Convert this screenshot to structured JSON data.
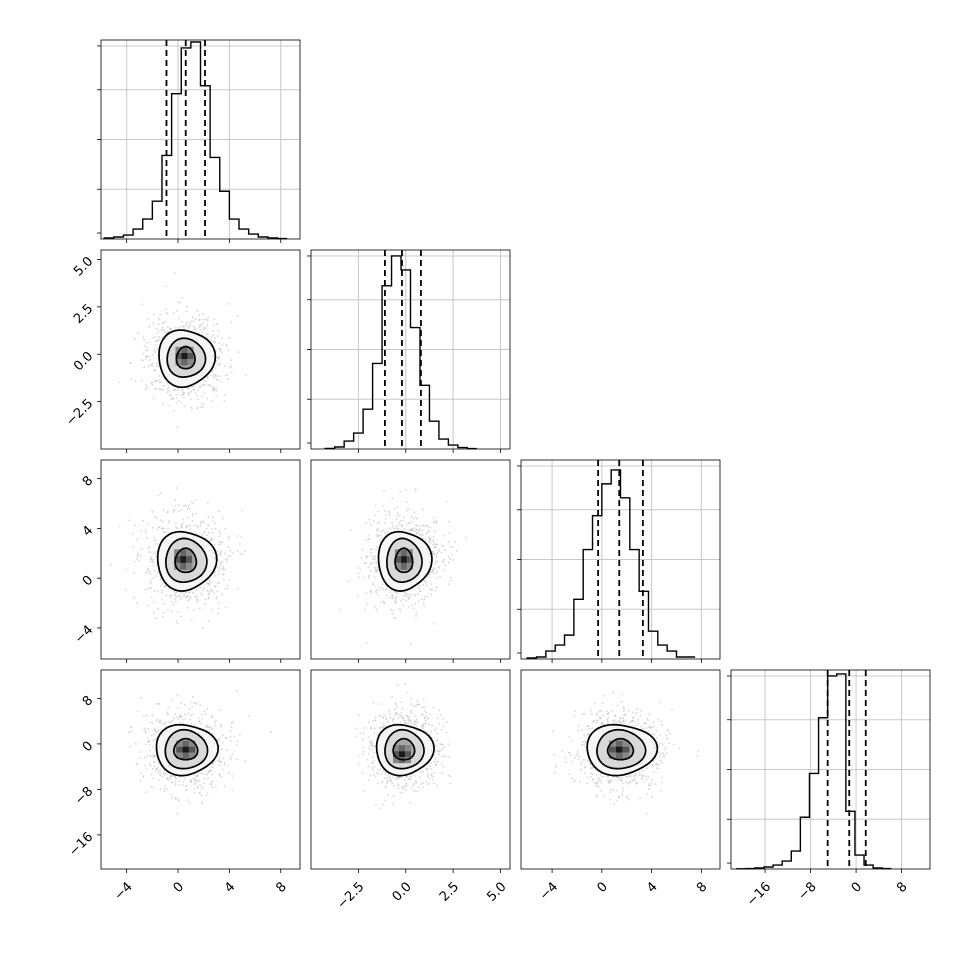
{
  "chart_data": {
    "type": "corner",
    "grid": true,
    "quantile_lines": "dashed",
    "n_params": 4,
    "axes": [
      {
        "range": [
          -6,
          9.5
        ],
        "ticks": [
          -4,
          0,
          4,
          8
        ],
        "tick_labels": [
          "−4",
          "0",
          "4",
          "8"
        ]
      },
      {
        "range": [
          -5,
          5.5
        ],
        "ticks": [
          -2.5,
          0,
          2.5,
          5
        ],
        "tick_labels": [
          "−2.5",
          "0.0",
          "2.5",
          "5.0"
        ]
      },
      {
        "range": [
          -6.5,
          9.5
        ],
        "ticks": [
          -4,
          0,
          4,
          8
        ],
        "tick_labels": [
          "−4",
          "0",
          "4",
          "8"
        ]
      },
      {
        "range": [
          -22,
          13
        ],
        "ticks": [
          -16,
          -8,
          0,
          8
        ],
        "tick_labels": [
          "−16",
          "−8",
          "0",
          "8"
        ]
      }
    ],
    "marginals": [
      {
        "bin_start": -5.75,
        "bin_width": 0.75,
        "counts": [
          0.005,
          0.01,
          0.02,
          0.05,
          0.1,
          0.19,
          0.42,
          0.73,
          0.96,
          0.99,
          0.77,
          0.41,
          0.24,
          0.1,
          0.05,
          0.025,
          0.01,
          0.005,
          0.002
        ],
        "quantiles": [
          -0.9,
          0.6,
          2.1
        ]
      },
      {
        "bin_start": -4.25,
        "bin_width": 0.5,
        "counts": [
          0.003,
          0.01,
          0.04,
          0.08,
          0.2,
          0.43,
          0.82,
          0.97,
          0.9,
          0.61,
          0.32,
          0.14,
          0.05,
          0.02,
          0.007,
          0.002
        ],
        "quantiles": [
          -1.1,
          -0.2,
          0.8
        ]
      },
      {
        "bin_start": -6,
        "bin_width": 0.75,
        "counts": [
          0.005,
          0.01,
          0.04,
          0.07,
          0.12,
          0.3,
          0.55,
          0.72,
          0.88,
          0.95,
          0.81,
          0.55,
          0.34,
          0.14,
          0.07,
          0.04,
          0.01,
          0.01
        ],
        "quantiles": [
          -0.3,
          1.4,
          3.3
        ]
      },
      {
        "bin_start": -21,
        "bin_width": 1.6,
        "counts": [
          0.001,
          0.002,
          0.005,
          0.01,
          0.02,
          0.04,
          0.09,
          0.26,
          0.48,
          0.76,
          0.97,
          0.98,
          0.29,
          0.07,
          0.02,
          0.005,
          0.002
        ],
        "quantiles": [
          -5.0,
          -1.2,
          1.7
        ]
      }
    ],
    "joint_panels": [
      {
        "row": 1,
        "col": 0,
        "center": [
          0.6,
          -0.2
        ],
        "sigma": [
          1.45,
          1.0
        ],
        "contours": [
          [
            0.7,
            0.6
          ],
          [
            1.45,
            1.05
          ],
          [
            2.1,
            1.55
          ]
        ],
        "dot_spread": [
          2.4,
          1.8
        ],
        "blob": [
          0.5,
          -0.1
        ]
      },
      {
        "row": 2,
        "col": 0,
        "center": [
          0.6,
          1.4
        ],
        "sigma": [
          1.5,
          1.7
        ],
        "contours": [
          [
            0.8,
            1.0
          ],
          [
            1.55,
            1.8
          ],
          [
            2.2,
            2.45
          ]
        ],
        "dot_spread": [
          2.5,
          3.0
        ],
        "blob": [
          0.4,
          1.5
        ]
      },
      {
        "row": 2,
        "col": 1,
        "center": [
          -0.1,
          1.4
        ],
        "sigma": [
          0.95,
          1.7
        ],
        "contours": [
          [
            0.45,
            1.0
          ],
          [
            0.9,
            1.8
          ],
          [
            1.35,
            2.45
          ]
        ],
        "dot_spread": [
          1.6,
          3.0
        ],
        "blob": [
          -0.1,
          1.5
        ]
      },
      {
        "row": 3,
        "col": 0,
        "center": [
          0.6,
          -1.0
        ],
        "sigma": [
          1.45,
          3.2
        ],
        "contours": [
          [
            0.9,
            1.9
          ],
          [
            1.6,
            3.5
          ],
          [
            2.3,
            4.6
          ]
        ],
        "dot_spread": [
          2.5,
          5.5
        ],
        "blob": [
          0.6,
          -1.0
        ]
      },
      {
        "row": 3,
        "col": 1,
        "center": [
          -0.1,
          -1.0
        ],
        "sigma": [
          0.95,
          3.2
        ],
        "contours": [
          [
            0.55,
            1.9
          ],
          [
            1.0,
            3.5
          ],
          [
            1.45,
            4.6
          ]
        ],
        "dot_spread": [
          1.6,
          5.5
        ],
        "blob": [
          -0.2,
          -1.8
        ]
      },
      {
        "row": 3,
        "col": 2,
        "center": [
          1.5,
          -1.0
        ],
        "sigma": [
          1.6,
          3.2
        ],
        "contours": [
          [
            1.0,
            1.9
          ],
          [
            1.9,
            3.5
          ],
          [
            2.7,
            4.6
          ]
        ],
        "dot_spread": [
          2.8,
          5.5
        ],
        "blob": [
          1.4,
          -1.0
        ]
      }
    ]
  }
}
